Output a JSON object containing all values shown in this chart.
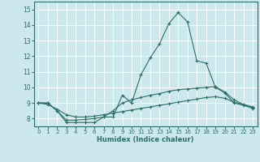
{
  "xlabel": "Humidex (Indice chaleur)",
  "xlim": [
    -0.5,
    23.5
  ],
  "ylim": [
    7.5,
    15.5
  ],
  "yticks": [
    8,
    9,
    10,
    11,
    12,
    13,
    14,
    15
  ],
  "xticks": [
    0,
    1,
    2,
    3,
    4,
    5,
    6,
    7,
    8,
    9,
    10,
    11,
    12,
    13,
    14,
    15,
    16,
    17,
    18,
    19,
    20,
    21,
    22,
    23
  ],
  "background_color": "#cce8ec",
  "grid_color": "#ffffff",
  "line_color": "#2e6e68",
  "line1_x": [
    0,
    1,
    2,
    3,
    4,
    5,
    6,
    7,
    8,
    9,
    10,
    11,
    12,
    13,
    14,
    15,
    16,
    17,
    18,
    19,
    20,
    21,
    22,
    23
  ],
  "line1_y": [
    9.0,
    9.0,
    8.5,
    7.75,
    7.75,
    7.75,
    7.75,
    8.1,
    8.1,
    9.5,
    9.0,
    10.8,
    11.9,
    12.8,
    14.1,
    14.8,
    14.2,
    11.7,
    11.55,
    10.0,
    9.65,
    9.0,
    8.85,
    8.65
  ],
  "line2_x": [
    0,
    1,
    2,
    3,
    4,
    5,
    6,
    7,
    8,
    9,
    10,
    11,
    12,
    13,
    14,
    15,
    16,
    17,
    18,
    19,
    20,
    21,
    22,
    23
  ],
  "line2_y": [
    9.0,
    9.0,
    8.5,
    7.9,
    7.9,
    7.95,
    8.0,
    8.1,
    8.5,
    9.0,
    9.2,
    9.35,
    9.5,
    9.6,
    9.75,
    9.85,
    9.9,
    9.95,
    10.0,
    10.05,
    9.7,
    9.2,
    8.9,
    8.7
  ],
  "line3_x": [
    0,
    1,
    2,
    3,
    4,
    5,
    6,
    7,
    8,
    9,
    10,
    11,
    12,
    13,
    14,
    15,
    16,
    17,
    18,
    19,
    20,
    21,
    22,
    23
  ],
  "line3_y": [
    9.0,
    8.9,
    8.6,
    8.25,
    8.1,
    8.1,
    8.15,
    8.25,
    8.35,
    8.45,
    8.55,
    8.65,
    8.75,
    8.85,
    8.95,
    9.05,
    9.15,
    9.25,
    9.35,
    9.4,
    9.3,
    9.05,
    8.9,
    8.75
  ]
}
